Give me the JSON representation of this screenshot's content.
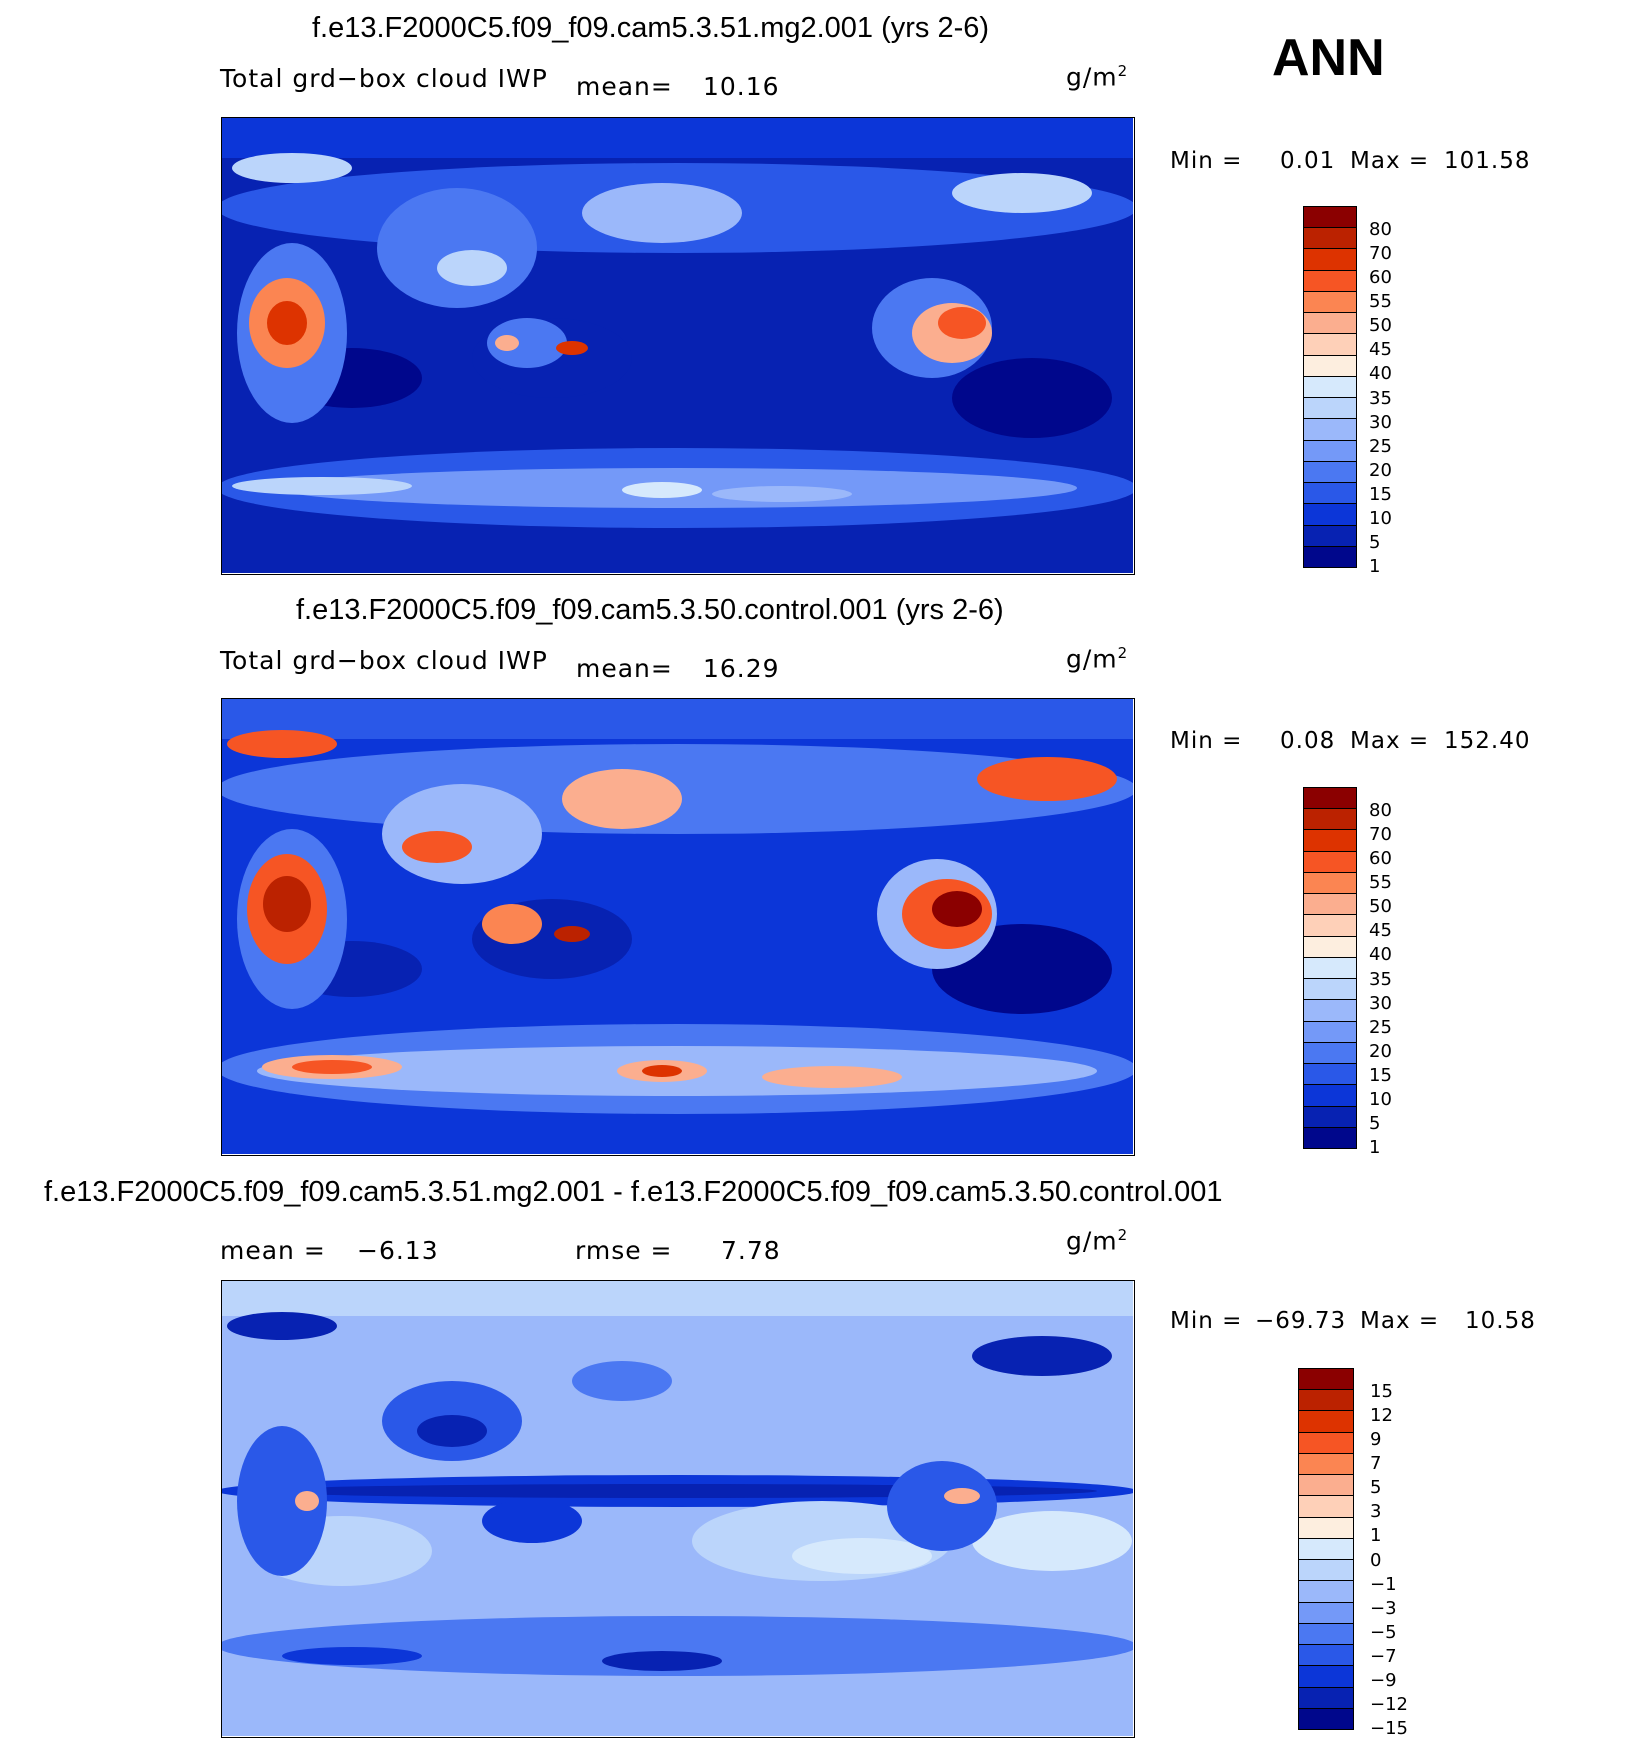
{
  "season": "ANN",
  "colors": {
    "abs": [
      "#8b0000",
      "#bb2200",
      "#dd3300",
      "#f65524",
      "#fb8552",
      "#fbae8f",
      "#fed0b8",
      "#fdeedf",
      "#d6e9fc",
      "#bbd5fb",
      "#9bb8fa",
      "#7499f8",
      "#4b78f2",
      "#2a58e8",
      "#0c36d8",
      "#0722b2",
      "#00078c"
    ],
    "diff": [
      "#8b0000",
      "#bb2200",
      "#dd3300",
      "#f65524",
      "#fb8552",
      "#fbae8f",
      "#fed0b8",
      "#fdeedf",
      "#d6e9fc",
      "#bbd5fb",
      "#9bb8fa",
      "#7499f8",
      "#4b78f2",
      "#2a58e8",
      "#0c36d8",
      "#0722b2",
      "#00078c"
    ]
  },
  "panels": [
    {
      "title": "f.e13.F2000C5.f09_f09.cam5.3.51.mg2.001 (yrs 2-6)",
      "variable": "Total grd−box cloud IWP",
      "mean_label": "mean=",
      "mean_value": "10.16",
      "units_base": "g/m",
      "units_exp": "2",
      "min_label": "Min =",
      "min_value": "0.01",
      "max_label": "Max =",
      "max_value": "101.58",
      "levels": [
        "80",
        "70",
        "60",
        "55",
        "50",
        "45",
        "40",
        "35",
        "30",
        "25",
        "20",
        "15",
        "10",
        "5",
        "1"
      ]
    },
    {
      "title": "f.e13.F2000C5.f09_f09.cam5.3.50.control.001 (yrs 2-6)",
      "variable": "Total grd−box cloud IWP",
      "mean_label": "mean=",
      "mean_value": "16.29",
      "units_base": "g/m",
      "units_exp": "2",
      "min_label": "Min =",
      "min_value": "0.08",
      "max_label": "Max =",
      "max_value": "152.40",
      "levels": [
        "80",
        "70",
        "60",
        "55",
        "50",
        "45",
        "40",
        "35",
        "30",
        "25",
        "20",
        "15",
        "10",
        "5",
        "1"
      ]
    },
    {
      "title": "f.e13.F2000C5.f09_f09.cam5.3.51.mg2.001 - f.e13.F2000C5.f09_f09.cam5.3.50.control.001",
      "mean_label": "mean =",
      "mean_value": "−6.13",
      "rmse_label": "rmse =",
      "rmse_value": "7.78",
      "units_base": "g/m",
      "units_exp": "2",
      "min_label": "Min =",
      "min_value": "−69.73",
      "max_label": "Max =",
      "max_value": "10.58",
      "levels": [
        "15",
        "12",
        "9",
        "7",
        "5",
        "3",
        "1",
        "0",
        "−1",
        "−3",
        "−5",
        "−7",
        "−9",
        "−12",
        "−15"
      ]
    }
  ]
}
